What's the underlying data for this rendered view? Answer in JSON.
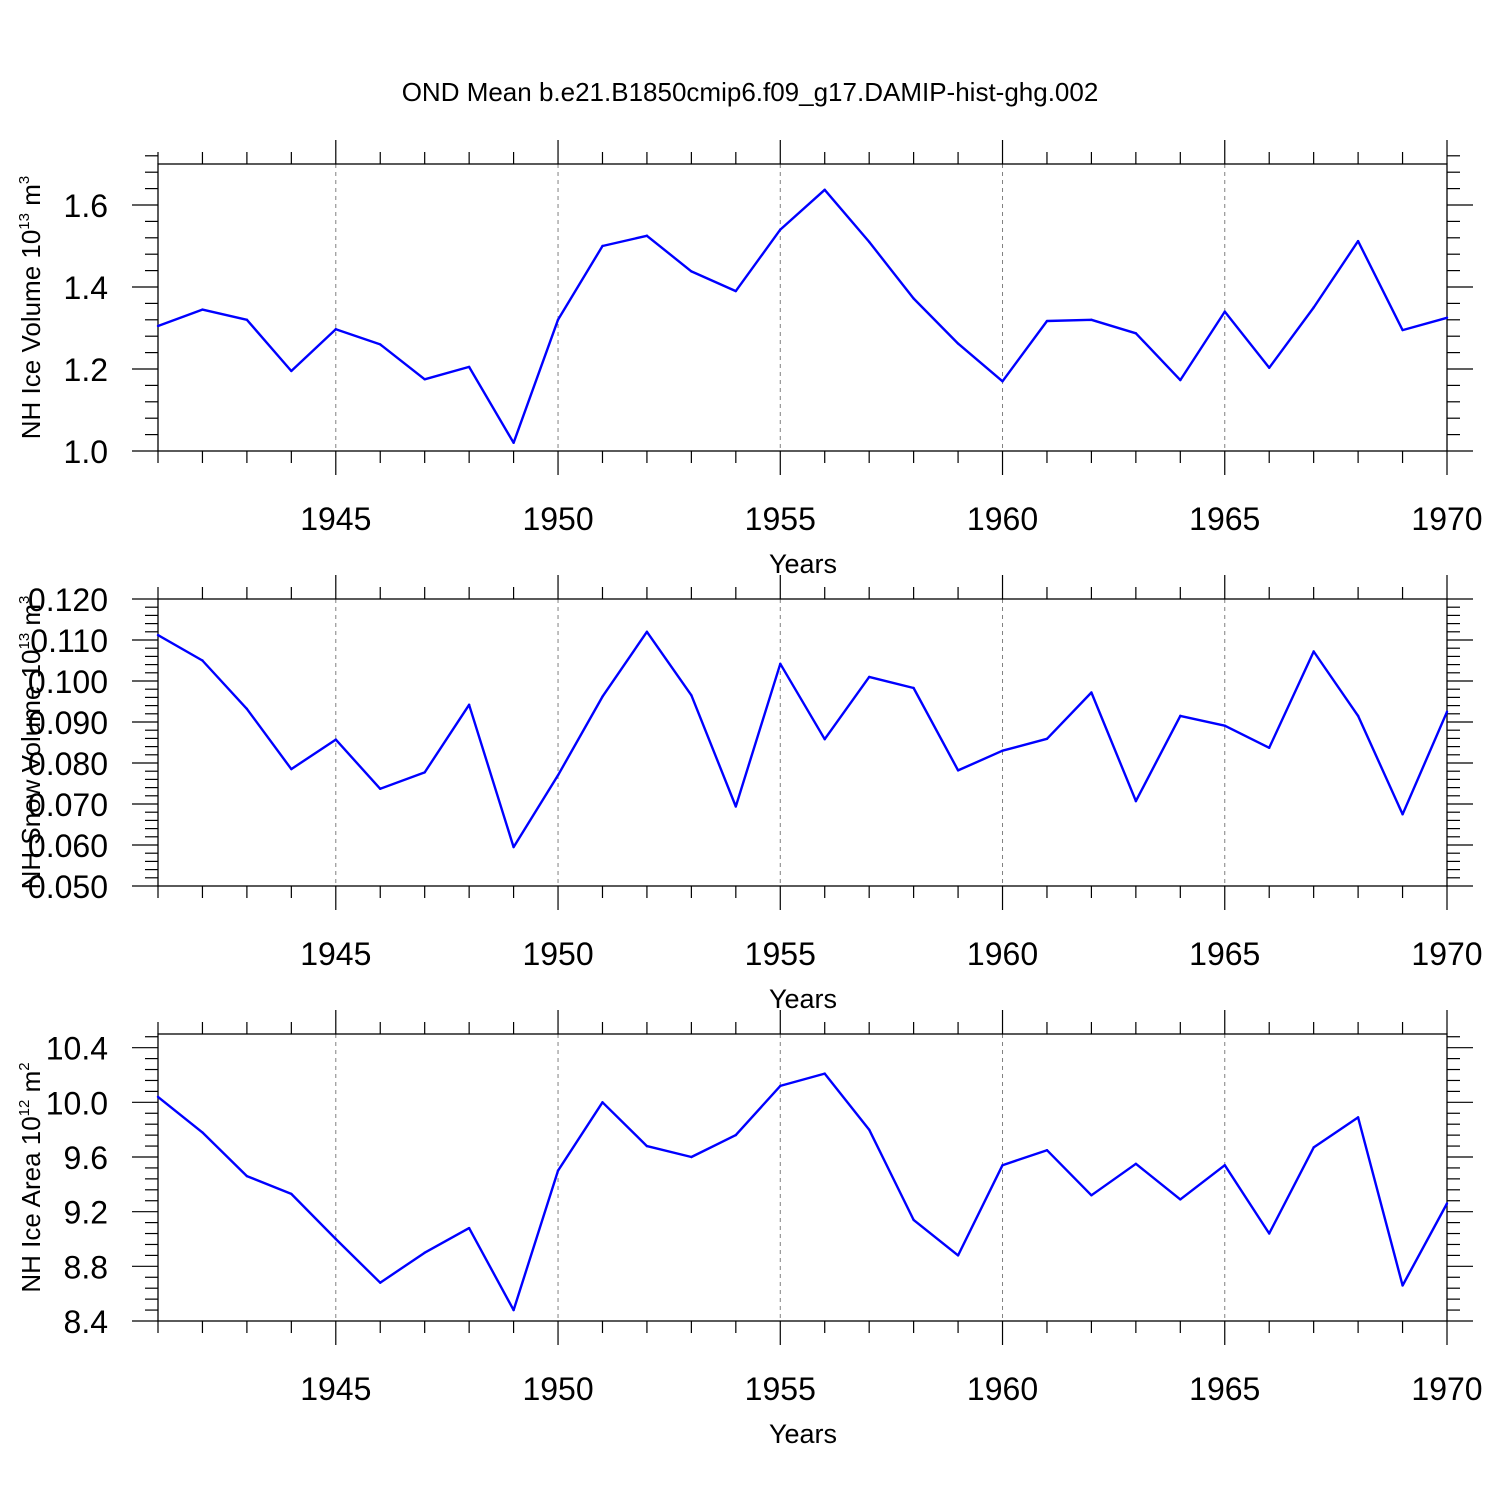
{
  "chart_data": {
    "title": "OND Mean b.e21.B1850cmip6.f09_g17.DAMIP-hist-ghg.002",
    "colors": {
      "line": "#0000ff",
      "axis": "#000000",
      "grid": "#808080"
    },
    "x_years": [
      1941,
      1942,
      1943,
      1944,
      1945,
      1946,
      1947,
      1948,
      1949,
      1950,
      1951,
      1952,
      1953,
      1954,
      1955,
      1956,
      1957,
      1958,
      1959,
      1960,
      1961,
      1962,
      1963,
      1964,
      1965,
      1966,
      1967,
      1968,
      1969,
      1970
    ],
    "panels": [
      {
        "type": "line",
        "name": "ice-volume",
        "ylabel": {
          "main": "NH Ice Volume 10",
          "sup1": "13",
          "unit": " m",
          "sup2": "3"
        },
        "xlabel": "Years",
        "xlim": [
          1941,
          1970
        ],
        "xticks": [
          "1945",
          "1950",
          "1955",
          "1960",
          "1965",
          "1970"
        ],
        "ylim": [
          1.0,
          1.7
        ],
        "yticks": [
          "1.0",
          "1.2",
          "1.4",
          "1.6"
        ],
        "values": [
          1.305,
          1.345,
          1.32,
          1.195,
          1.297,
          1.26,
          1.175,
          1.205,
          1.02,
          1.32,
          1.5,
          1.525,
          1.438,
          1.39,
          1.54,
          1.637,
          1.51,
          1.372,
          1.262,
          1.17,
          1.317,
          1.32,
          1.287,
          1.173,
          1.34,
          1.203,
          1.35,
          1.512,
          1.295,
          1.325
        ]
      },
      {
        "type": "line",
        "name": "snow-volume",
        "ylabel": {
          "main": "NH Snow Volume 10",
          "sup1": "13",
          "unit": " m",
          "sup2": "3"
        },
        "xlabel": "Years",
        "xlim": [
          1941,
          1970
        ],
        "xticks": [
          "1945",
          "1950",
          "1955",
          "1960",
          "1965",
          "1970"
        ],
        "ylim": [
          0.05,
          0.12
        ],
        "yticks": [
          "0.050",
          "0.060",
          "0.070",
          "0.080",
          "0.090",
          "0.100",
          "0.110",
          "0.120"
        ],
        "values": [
          0.1112,
          0.105,
          0.0932,
          0.0785,
          0.0857,
          0.0737,
          0.0777,
          0.0942,
          0.0595,
          0.077,
          0.0962,
          0.112,
          0.0965,
          0.0694,
          0.1042,
          0.0858,
          0.101,
          0.0983,
          0.0782,
          0.083,
          0.0859,
          0.0972,
          0.0707,
          0.0915,
          0.0891,
          0.0837,
          0.1072,
          0.0915,
          0.0675,
          0.0925
        ]
      },
      {
        "type": "line",
        "name": "ice-area",
        "ylabel": {
          "main": "NH Ice Area 10",
          "sup1": "12",
          "unit": " m",
          "sup2": "2"
        },
        "xlabel": "Years",
        "xlim": [
          1941,
          1970
        ],
        "xticks": [
          "1945",
          "1950",
          "1955",
          "1960",
          "1965",
          "1970"
        ],
        "ylim": [
          8.4,
          10.5
        ],
        "yticks": [
          "8.4",
          "8.8",
          "9.2",
          "9.6",
          "10.0",
          "10.4"
        ],
        "values": [
          10.04,
          9.78,
          9.46,
          9.33,
          9.0,
          8.68,
          8.9,
          9.08,
          8.48,
          9.5,
          10.0,
          9.68,
          9.6,
          9.76,
          10.12,
          10.21,
          9.8,
          9.14,
          8.88,
          9.54,
          9.65,
          9.32,
          9.55,
          9.29,
          9.54,
          9.04,
          9.67,
          9.89,
          8.66,
          9.26
        ]
      }
    ]
  }
}
